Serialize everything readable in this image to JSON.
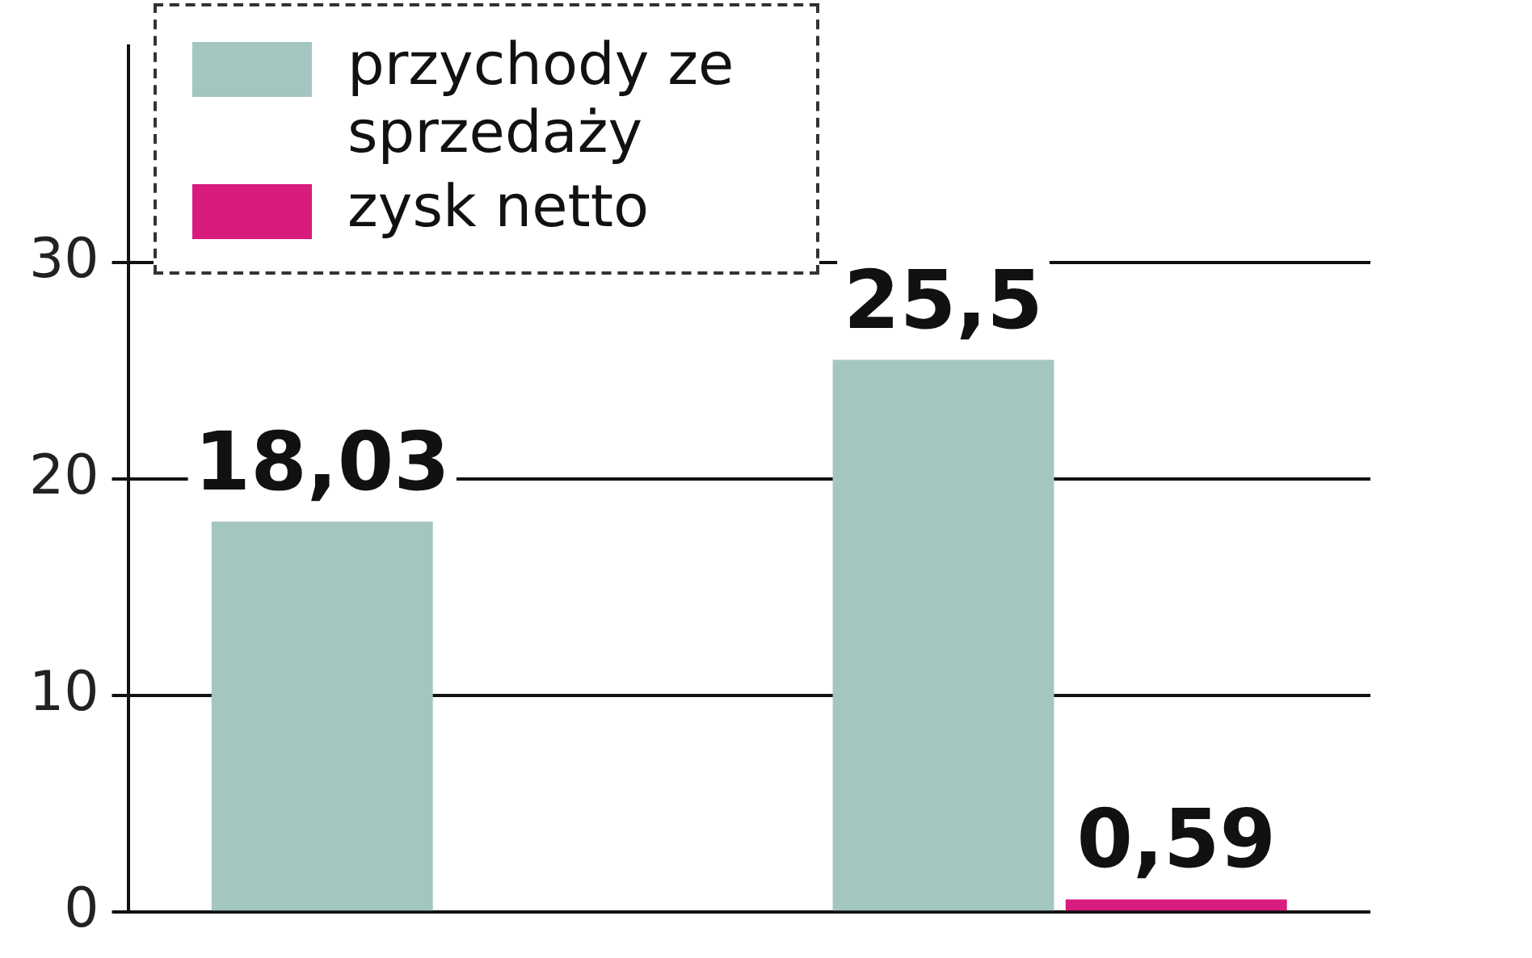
{
  "chart_data": {
    "type": "bar",
    "categories": [
      null,
      null
    ],
    "series": [
      {
        "name": "przychody ze sprzedaży",
        "color": "#a3c6c1",
        "values": [
          18.03,
          25.5
        ],
        "value_labels": [
          "18,03",
          "25,5"
        ]
      },
      {
        "name": "zysk netto",
        "color": "#d81b7d",
        "values": [
          null,
          0.59
        ],
        "value_labels": [
          null,
          "0,59"
        ]
      }
    ],
    "ylim": [
      0,
      40
    ],
    "yticks": [
      0,
      10,
      20,
      30
    ],
    "grid": "y",
    "legend": "top left"
  }
}
